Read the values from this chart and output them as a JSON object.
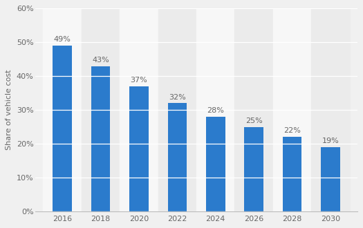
{
  "categories": [
    "2016",
    "2018",
    "2020",
    "2022",
    "2024",
    "2026",
    "2028",
    "2030"
  ],
  "values": [
    49,
    43,
    37,
    32,
    28,
    25,
    22,
    19
  ],
  "bar_color": "#2b7bcc",
  "ylabel": "Share of vehicle cost",
  "ylim": [
    0,
    60
  ],
  "yticks": [
    0,
    10,
    20,
    30,
    40,
    50,
    60
  ],
  "ytick_labels": [
    "0%",
    "10%",
    "20%",
    "30%",
    "40%",
    "50%",
    "60%"
  ],
  "label_fontsize": 8.0,
  "axis_fontsize": 8.0,
  "bar_label_color": "#666666",
  "background_color": "#f0f0f0",
  "col_band_color_even": "#f7f7f7",
  "col_band_color_odd": "#ebebeb",
  "grid_color": "#ffffff",
  "bar_width": 0.5
}
